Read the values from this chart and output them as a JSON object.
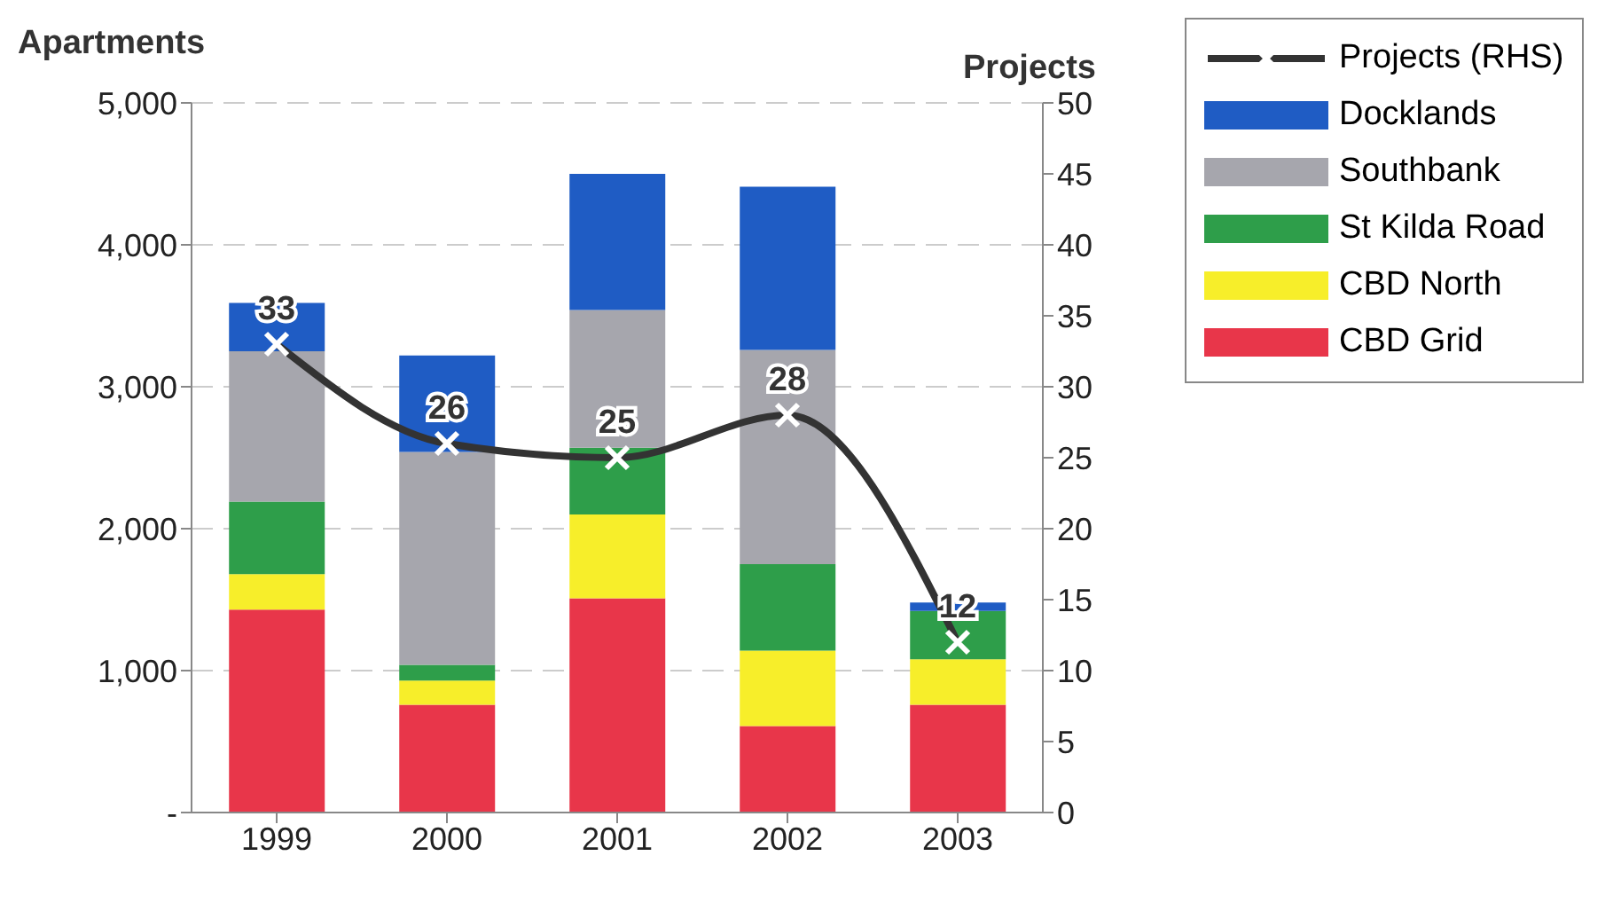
{
  "chart_data": {
    "type": "bar",
    "stacked": true,
    "ylabel": "Apartments",
    "y2label": "Projects",
    "categories": [
      "1999",
      "2000",
      "2001",
      "2002",
      "2003"
    ],
    "series": [
      {
        "name": "CBD Grid",
        "color": "#e8364a",
        "values": [
          1430,
          760,
          1510,
          610,
          760
        ]
      },
      {
        "name": "CBD North",
        "color": "#f7ee2a",
        "values": [
          250,
          170,
          590,
          530,
          320
        ]
      },
      {
        "name": "St Kilda Road",
        "color": "#2e9e4a",
        "values": [
          510,
          110,
          470,
          610,
          340
        ]
      },
      {
        "name": "Southbank",
        "color": "#a6a6ad",
        "values": [
          1060,
          1500,
          970,
          1510,
          0
        ]
      },
      {
        "name": "Docklands",
        "color": "#1f5cc4",
        "values": [
          340,
          680,
          960,
          1150,
          60
        ]
      },
      {
        "name": "Projects (RHS)",
        "type": "line",
        "axis": "y2",
        "color": "#333333",
        "marker": "cross",
        "line_style": "solid",
        "values": [
          33,
          26,
          25,
          28,
          12
        ],
        "value_labels": [
          "33",
          "26",
          "25",
          "28",
          "12"
        ]
      }
    ],
    "ylim": [
      0,
      5000
    ],
    "yticks": [
      {
        "value": 0,
        "label": "-"
      },
      {
        "value": 1000,
        "label": "1,000"
      },
      {
        "value": 2000,
        "label": "2,000"
      },
      {
        "value": 3000,
        "label": "3,000"
      },
      {
        "value": 4000,
        "label": "4,000"
      },
      {
        "value": 5000,
        "label": "5,000"
      }
    ],
    "y2lim": [
      0,
      50
    ],
    "y2ticks": [
      0,
      5,
      10,
      15,
      20,
      25,
      30,
      35,
      40,
      45,
      50
    ],
    "grid": "y",
    "legend": "top right"
  }
}
